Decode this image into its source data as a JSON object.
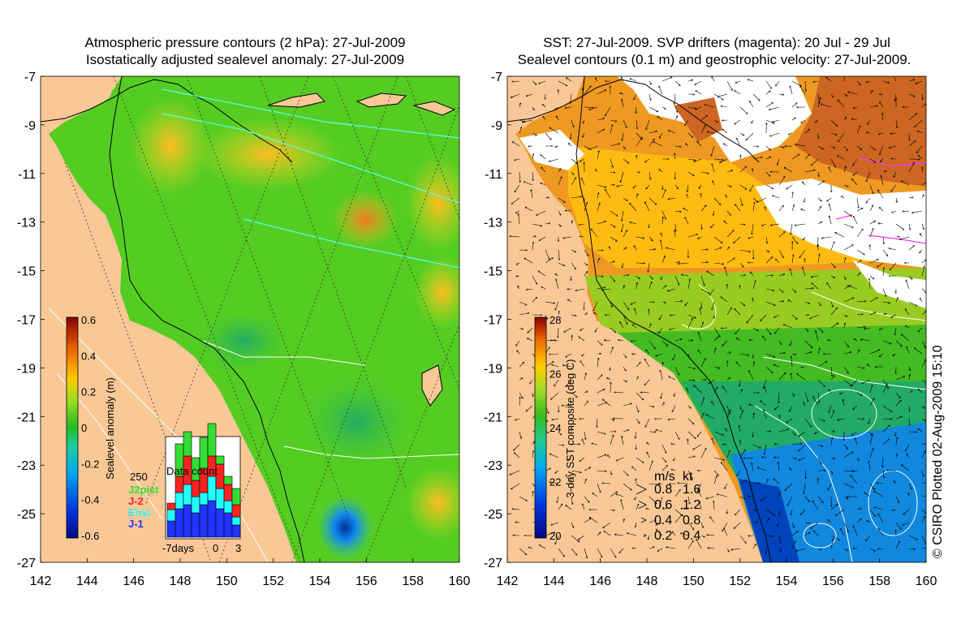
{
  "left_panel": {
    "title_line1": "Atmospheric pressure contours (2 hPa): 27-Jul-2009",
    "title_line2": "Isostatically adjusted sealevel anomaly: 27-Jul-2009",
    "y_ticks": [
      "-7",
      "-9",
      "-11",
      "-13",
      "-15",
      "-17",
      "-19",
      "-21",
      "-23",
      "-25",
      "-27"
    ],
    "x_ticks": [
      "142",
      "144",
      "146",
      "148",
      "150",
      "152",
      "154",
      "156",
      "158",
      "160"
    ],
    "colorbar": {
      "label": "Sealevel anomaly (m)",
      "ticks": [
        "0.6",
        "0.4",
        "0.2",
        "0",
        "-0.2",
        "-0.4",
        "-0.6"
      ]
    },
    "histogram": {
      "title": "Data count",
      "scale_label": "250",
      "x_labels": [
        "-7days",
        "0",
        "3"
      ],
      "legend": [
        {
          "label": "J2pist",
          "color": "#33dd33"
        },
        {
          "label": "J-2",
          "color": "#ff2222"
        },
        {
          "label": "Envi",
          "color": "#22ffff"
        },
        {
          "label": "J-1",
          "color": "#2233ff"
        }
      ]
    }
  },
  "right_panel": {
    "title_line1": "SST: 27-Jul-2009. SVP drifters (magenta): 20 Jul - 29 Jul",
    "title_line2": "Sealevel contours (0.1 m) and geostrophic velocity: 27-Jul-2009.",
    "y_ticks": [
      "-7",
      "-9",
      "-11",
      "-13",
      "-15",
      "-17",
      "-19",
      "-21",
      "-23",
      "-25",
      "-27"
    ],
    "x_ticks": [
      "142",
      "144",
      "146",
      "148",
      "150",
      "152",
      "154",
      "156",
      "158",
      "160"
    ],
    "colorbar": {
      "label": "3-day SST composite (deg C)",
      "ticks": [
        "28",
        "26",
        "24",
        "22",
        "20"
      ]
    },
    "velocity_legend": {
      "header_ms": "m/s",
      "header_kt": "kt",
      "rows": [
        {
          "ms": "0.8",
          "kt": "1.6"
        },
        {
          "ms": "0.6",
          "kt": "1.2"
        },
        {
          "ms": "0.4",
          "kt": "0.8"
        },
        {
          "ms": "0.2",
          "kt": "0.4"
        }
      ]
    }
  },
  "credit": "© CSIRO Plotted 02-Aug-2009 15:10",
  "colors": {
    "land": "#f9c896",
    "sla_green": "#55cc22",
    "sst_orange": "#ee9922",
    "cloud": "#ffffff"
  }
}
